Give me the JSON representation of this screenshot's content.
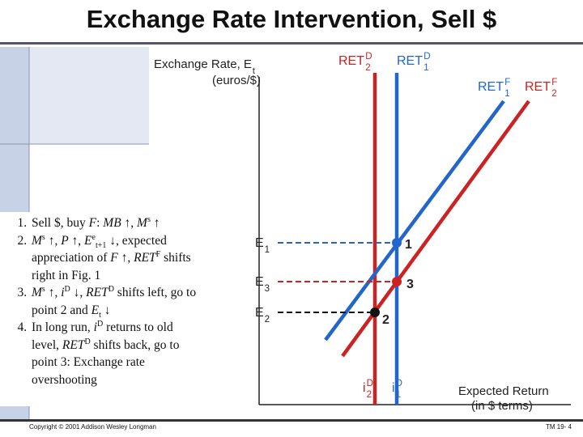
{
  "title": "Exchange Rate Intervention, Sell $",
  "notes": [
    [
      {
        "t": "Sell $, buy "
      },
      {
        "t": "F",
        "s": "i"
      },
      {
        "t": ": "
      },
      {
        "t": "MB",
        "s": "i"
      },
      {
        "t": " ↑, "
      },
      {
        "t": "M",
        "s": "i"
      },
      {
        "t": "s",
        "s": "sup"
      },
      {
        "t": " ↑"
      }
    ],
    [
      {
        "t": "M",
        "s": "i"
      },
      {
        "t": "s",
        "s": "sup"
      },
      {
        "t": " ↑, "
      },
      {
        "t": "P",
        "s": "i"
      },
      {
        "t": " ↑, "
      },
      {
        "t": "E",
        "s": "i"
      },
      {
        "t": "e",
        "s": "sup"
      },
      {
        "t": "t+1",
        "s": "sub"
      },
      {
        "t": " ↓, expected appreciation of "
      },
      {
        "t": "F",
        "s": "i"
      },
      {
        "t": " ↑, "
      },
      {
        "t": "RET",
        "s": "i"
      },
      {
        "t": "F",
        "s": "sup"
      },
      {
        "t": " shifts right in Fig. 1"
      }
    ],
    [
      {
        "t": "M",
        "s": "i"
      },
      {
        "t": "s",
        "s": "sup"
      },
      {
        "t": " ↑, "
      },
      {
        "t": "i",
        "s": "i"
      },
      {
        "t": "D",
        "s": "sup"
      },
      {
        "t": " ↓, "
      },
      {
        "t": "RET",
        "s": "i"
      },
      {
        "t": "D",
        "s": "sup"
      },
      {
        "t": " shifts left, go to point 2 and "
      },
      {
        "t": "E",
        "s": "i"
      },
      {
        "t": "t",
        "s": "sub"
      },
      {
        "t": " ↓"
      }
    ],
    [
      {
        "t": "In long run, "
      },
      {
        "t": "i",
        "s": "i"
      },
      {
        "t": "D",
        "s": "sup"
      },
      {
        "t": " returns to old level, "
      },
      {
        "t": "RET",
        "s": "i"
      },
      {
        "t": "D",
        "s": "sup"
      },
      {
        "t": " shifts back, go to point 3: Exchange rate overshooting"
      }
    ]
  ],
  "diagram": {
    "y_axis_label": {
      "base": "Exchange Rate, E",
      "sub": "t"
    },
    "y_axis_unit": "(euros/$)",
    "x_axis_label": "Expected Return",
    "x_axis_unit": "(in $ terms)",
    "curves": [
      {
        "base": "RET",
        "sup": "D",
        "sub": "2",
        "color": "#cc2222"
      },
      {
        "base": "RET",
        "sup": "D",
        "sub": "1",
        "color": "#2266cc"
      },
      {
        "base": "RET",
        "sup": "F",
        "sub": "1",
        "color": "#2266cc"
      },
      {
        "base": "RET",
        "sup": "F",
        "sub": "2",
        "color": "#cc2222"
      }
    ],
    "levels": [
      {
        "base": "E",
        "sub": "1"
      },
      {
        "base": "E",
        "sub": "3"
      },
      {
        "base": "E",
        "sub": "2"
      }
    ],
    "points": [
      "1",
      "3",
      "2"
    ],
    "x_marks": [
      {
        "base": "i",
        "sup": "D",
        "sub": "2"
      },
      {
        "base": "i",
        "sup": "D",
        "sub": "1"
      }
    ]
  },
  "footer": {
    "copyright": "Copyright © 2001 Addison Wesley Longman",
    "page": "TM 19- 4"
  }
}
